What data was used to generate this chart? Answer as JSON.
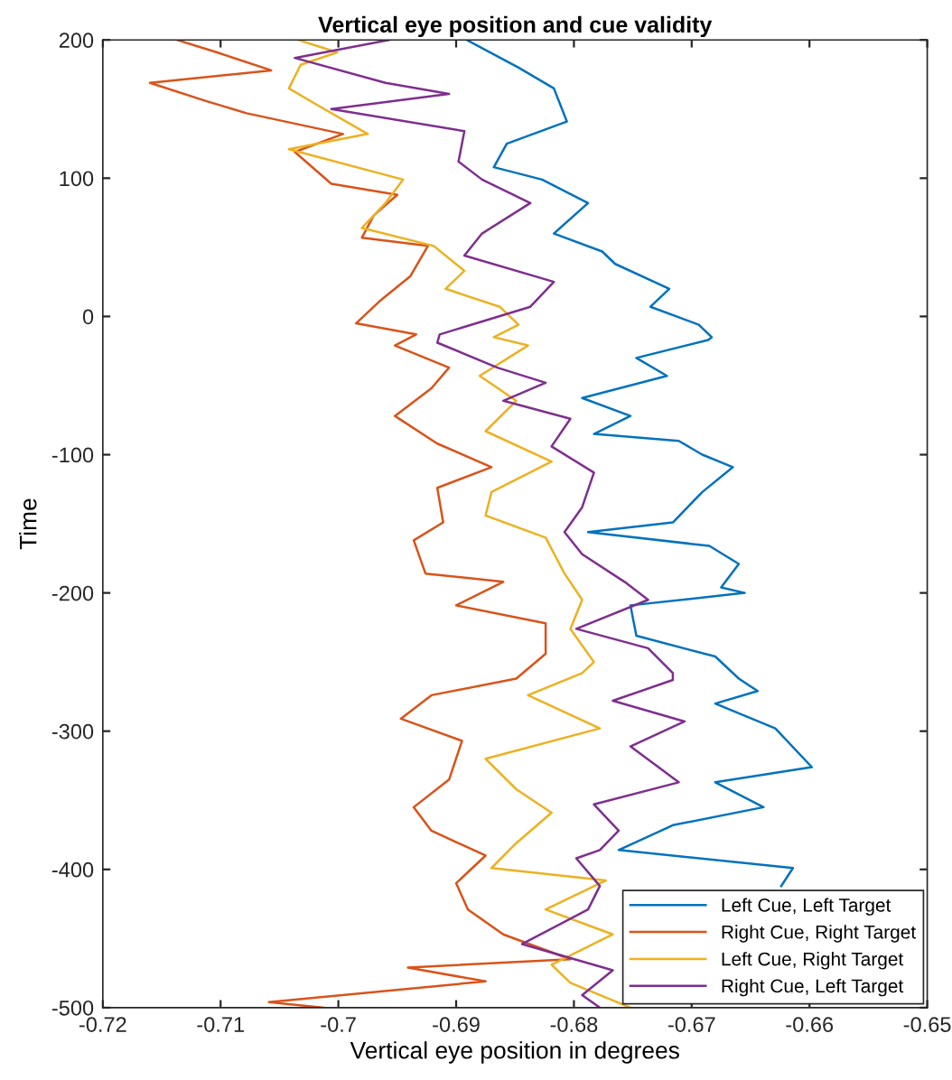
{
  "chart_data": {
    "type": "line",
    "title": "Vertical eye position and cue validity",
    "xlabel": "Vertical eye position in degrees",
    "ylabel": "Time",
    "xlim": [
      -0.72,
      -0.65
    ],
    "xticks": [
      -0.72,
      -0.71,
      -0.7,
      -0.69,
      -0.68,
      -0.67,
      -0.66,
      -0.65
    ],
    "ylim": [
      -500,
      200
    ],
    "yticks": [
      -500,
      -400,
      -300,
      -200,
      -100,
      0,
      100,
      200
    ],
    "grid": false,
    "legend": "bottom right",
    "marker": "none",
    "line_style": "solid",
    "series": [
      {
        "name": "Left Cue, Left Target",
        "color": "#0072bd",
        "x": [
          -0.6891,
          -0.6847,
          -0.6817,
          -0.6806,
          -0.6857,
          -0.6868,
          -0.6827,
          -0.6788,
          -0.6817,
          -0.6776,
          -0.6765,
          -0.6719,
          -0.6735,
          -0.6694,
          -0.6683,
          -0.6686,
          -0.6747,
          -0.6721,
          -0.6793,
          -0.6752,
          -0.6783,
          -0.6711,
          -0.6691,
          -0.6665,
          -0.6691,
          -0.6716,
          -0.6788,
          -0.6685,
          -0.666,
          -0.6675,
          -0.6655,
          -0.6752,
          -0.6747,
          -0.668,
          -0.666,
          -0.6644,
          -0.668,
          -0.6629,
          -0.6598,
          -0.668,
          -0.6639,
          -0.6716,
          -0.6762,
          -0.6614,
          -0.6624
        ],
        "values": [
          200,
          180,
          165,
          141,
          125,
          108,
          99,
          82,
          60,
          47,
          38,
          20,
          7,
          -6,
          -15,
          -17,
          -30,
          -43,
          -59,
          -72,
          -85,
          -90,
          -100,
          -109,
          -127,
          -149,
          -156,
          -166,
          -179,
          -196,
          -200,
          -209,
          -231,
          -246,
          -262,
          -271,
          -280,
          -298,
          -326,
          -337,
          -355,
          -368,
          -386,
          -399,
          -412
        ]
      },
      {
        "name": "Right Cue, Right Target",
        "color": "#d95319",
        "x": [
          -0.7137,
          -0.7103,
          -0.7057,
          -0.716,
          -0.7113,
          -0.7078,
          -0.6996,
          -0.7037,
          -0.7006,
          -0.695,
          -0.697,
          -0.698,
          -0.6924,
          -0.6939,
          -0.6965,
          -0.6985,
          -0.6934,
          -0.6952,
          -0.6906,
          -0.6921,
          -0.6952,
          -0.6916,
          -0.687,
          -0.6916,
          -0.6911,
          -0.6936,
          -0.6926,
          -0.686,
          -0.69,
          -0.6824,
          -0.6824,
          -0.6849,
          -0.6921,
          -0.6947,
          -0.6895,
          -0.6906,
          -0.6936,
          -0.6921,
          -0.6875,
          -0.69,
          -0.689,
          -0.686,
          -0.6803,
          -0.6941,
          -0.6875,
          -0.7059,
          -0.7013
        ],
        "values": [
          200,
          191,
          178,
          169,
          156,
          147,
          132,
          119,
          96,
          88,
          73,
          57,
          51,
          29,
          11,
          -5,
          -13,
          -21,
          -37,
          -52,
          -72,
          -92,
          -109,
          -124,
          -149,
          -162,
          -186,
          -192,
          -209,
          -222,
          -244,
          -262,
          -274,
          -291,
          -307,
          -335,
          -355,
          -372,
          -390,
          -410,
          -429,
          -447,
          -465,
          -471,
          -481,
          -496,
          -500
        ]
      },
      {
        "name": "Left Cue, Right Target",
        "color": "#edb120",
        "x": [
          -0.7034,
          -0.7001,
          -0.7032,
          -0.7042,
          -0.7016,
          -0.6975,
          -0.7042,
          -0.6945,
          -0.696,
          -0.698,
          -0.6919,
          -0.6893,
          -0.6909,
          -0.6863,
          -0.6847,
          -0.6868,
          -0.6839,
          -0.688,
          -0.6849,
          -0.6875,
          -0.6819,
          -0.687,
          -0.6875,
          -0.6824,
          -0.6808,
          -0.6793,
          -0.6803,
          -0.6783,
          -0.6793,
          -0.6839,
          -0.6778,
          -0.6875,
          -0.6849,
          -0.6819,
          -0.6849,
          -0.687,
          -0.6773,
          -0.6824,
          -0.6767,
          -0.6819,
          -0.6803,
          -0.6752
        ],
        "values": [
          200,
          191,
          182,
          165,
          152,
          132,
          121,
          99,
          82,
          64,
          51,
          33,
          20,
          7,
          -6,
          -15,
          -21,
          -43,
          -61,
          -83,
          -105,
          -127,
          -144,
          -160,
          -186,
          -205,
          -226,
          -250,
          -258,
          -274,
          -298,
          -320,
          -342,
          -359,
          -381,
          -399,
          -408,
          -429,
          -447,
          -469,
          -482,
          -500
        ]
      },
      {
        "name": "Right Cue, Left Target",
        "color": "#7e2f8e",
        "x": [
          -0.6957,
          -0.7037,
          -0.696,
          -0.6906,
          -0.7006,
          -0.6893,
          -0.6898,
          -0.6878,
          -0.6837,
          -0.6878,
          -0.6893,
          -0.6817,
          -0.6837,
          -0.6914,
          -0.6916,
          -0.6865,
          -0.6824,
          -0.686,
          -0.6803,
          -0.6819,
          -0.6783,
          -0.6793,
          -0.6808,
          -0.6793,
          -0.6757,
          -0.6737,
          -0.6798,
          -0.6737,
          -0.6716,
          -0.6716,
          -0.6767,
          -0.6706,
          -0.6752,
          -0.6711,
          -0.6783,
          -0.6762,
          -0.6778,
          -0.6798,
          -0.6778,
          -0.6788,
          -0.6844,
          -0.6767,
          -0.6793,
          -0.6778
        ],
        "values": [
          200,
          187,
          169,
          161,
          150,
          134,
          112,
          99,
          82,
          60,
          44,
          25,
          7,
          -13,
          -19,
          -37,
          -48,
          -61,
          -74,
          -94,
          -113,
          -138,
          -156,
          -172,
          -192,
          -205,
          -226,
          -240,
          -258,
          -263,
          -278,
          -293,
          -311,
          -337,
          -353,
          -372,
          -386,
          -392,
          -412,
          -429,
          -454,
          -473,
          -491,
          -500
        ]
      }
    ]
  }
}
